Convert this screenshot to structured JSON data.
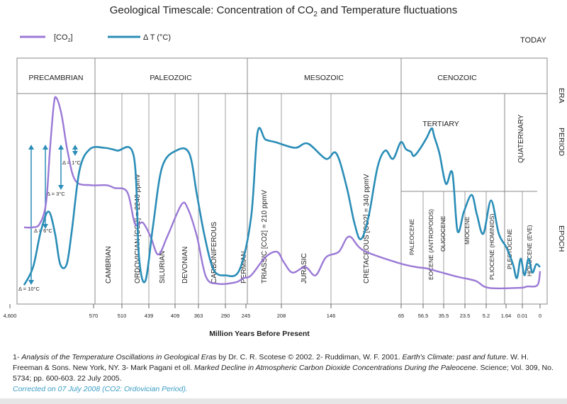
{
  "title_main": "Geological Timescale: Concentration of CO",
  "title_sub": "2",
  "title_rest": " and Temperature fluctuations",
  "legend": {
    "co2_label": "[CO",
    "co2_sub": "2",
    "co2_close": "]",
    "temp_label": "Δ T (°C)",
    "co2_color": "#9b79d6",
    "temp_color": "#2a8db7"
  },
  "today_label": "TODAY",
  "right_labels": [
    "ERA",
    "PERIOD",
    "EPOCH"
  ],
  "eras": [
    "PRECAMBRIAN",
    "PALEOZOIC",
    "MESOZOIC",
    "CENOZOIC"
  ],
  "tertiary_label": "TERTIARY",
  "quaternary_label": "QUATERNARY",
  "periods": [
    "CAMBRIAN",
    "ORDOVICIAN [CO2] = 2240 ppmV",
    "SILURIAN",
    "DEVONIAN",
    "CARBONIFEROUS",
    "PERMIAN",
    "TRIASSIC [CO2] = 210 ppmV",
    "JURASIC",
    "CRETACEOUS [CO2] = 340 ppmV"
  ],
  "epochs": [
    "PALEOCENE",
    "EOCENE (ANTROPOIDS)",
    "OLIGOCENE",
    "MIOCENE",
    "PLIOCENE (HOMINIDS)",
    "PLESTOCENE",
    "HOLOCENE (EVE)"
  ],
  "scale_labels": [
    "Δ = 1°C",
    "Δ = 3°C",
    "Δ = 6°C",
    "Δ = 10°C"
  ],
  "x_axis": {
    "ticks": [
      "4,600",
      "570",
      "510",
      "439",
      "409",
      "363",
      "290",
      "245",
      "208",
      "146",
      "65",
      "56.5",
      "35.5",
      "23.5",
      "5.2",
      "1.64",
      "0.01",
      "0"
    ],
    "xlabel": "Million Years Before Present"
  },
  "caption": {
    "p1": "1- ",
    "p2": "Analysis of the Temperature Oscillations in Geological Eras",
    "p3": " by Dr. C. R. Scotese © 2002. 2- Ruddiman, W. F. 2001. ",
    "p4": "Earth's Climate: past and future",
    "p5": ". W. H. Freeman & Sons. New York, NY. 3- Mark Pagani et oll. ",
    "p6": "Marked Decline in Atmospheric Carbon Dioxide Concentrations During the Paleocene",
    "p7": ". Science; Vol. 309, No. 5734; pp. 600-603. 22 July 2005.",
    "correction": "Corrected on 07 July 2008 (CO2: Ordovician Period)."
  },
  "chart_data": {
    "type": "line",
    "x_ticks_mya": [
      "4,600",
      "570",
      "510",
      "439",
      "409",
      "363",
      "290",
      "245",
      "208",
      "146",
      "65",
      "56.5",
      "35.5",
      "23.5",
      "5.2",
      "1.64",
      "0.01",
      "0"
    ],
    "xlabel": "Million Years Before Present",
    "series": [
      {
        "name": "[CO2]",
        "color": "#9b79d6",
        "points": [
          [
            0,
            2.33
          ],
          [
            0.3,
            2.33
          ],
          [
            0.6,
            2.45
          ],
          [
            0.85,
            3.2
          ],
          [
            1.0,
            5.1
          ],
          [
            1.15,
            6.75
          ],
          [
            1.25,
            7.0
          ],
          [
            1.45,
            6.4
          ],
          [
            1.7,
            5.0
          ],
          [
            2.0,
            4.0
          ],
          [
            2.6,
            3.85
          ],
          [
            3.2,
            3.85
          ],
          [
            3.5,
            3.75
          ],
          [
            4.0,
            3.6
          ],
          [
            4.3,
            2.45
          ],
          [
            4.6,
            2.5
          ],
          [
            4.9,
            2.0
          ],
          [
            5.2,
            1.35
          ],
          [
            5.55,
            2.0
          ],
          [
            6.1,
            3.15
          ],
          [
            6.35,
            3.0
          ],
          [
            6.7,
            2.0
          ],
          [
            7.05,
            0.55
          ],
          [
            7.5,
            0.3
          ],
          [
            8.2,
            0.35
          ],
          [
            8.5,
            0.5
          ],
          [
            8.8,
            0.6
          ],
          [
            9.35,
            1.25
          ],
          [
            9.8,
            1.45
          ],
          [
            10.05,
            1.1
          ],
          [
            10.4,
            0.7
          ],
          [
            10.9,
            0.9
          ],
          [
            11.3,
            0.6
          ],
          [
            11.7,
            1.25
          ],
          [
            12.2,
            1.45
          ],
          [
            12.6,
            2.0
          ],
          [
            13.15,
            1.5
          ],
          [
            14.5,
            1.05
          ],
          [
            15.2,
            0.9
          ],
          [
            15.6,
            0.85
          ],
          [
            16.2,
            0.7
          ],
          [
            16.8,
            0.55
          ],
          [
            17.5,
            0.4
          ],
          [
            18.0,
            0.15
          ],
          [
            19.2,
            0.15
          ],
          [
            19.5,
            0.2
          ],
          [
            19.9,
            0.25
          ],
          [
            20.0,
            0.75
          ]
        ]
      },
      {
        "name": "Δ T (°C)",
        "color": "#2a8db7",
        "points": [
          [
            0,
            0.25
          ],
          [
            0.35,
            0.9
          ],
          [
            0.65,
            2.2
          ],
          [
            0.95,
            2.9
          ],
          [
            1.2,
            2.1
          ],
          [
            1.4,
            1.0
          ],
          [
            1.65,
            1.0
          ],
          [
            1.85,
            2.2
          ],
          [
            2.15,
            4.4
          ],
          [
            2.55,
            5.15
          ],
          [
            3.1,
            5.2
          ],
          [
            3.6,
            5.1
          ],
          [
            4.25,
            4.9
          ],
          [
            4.45,
            1.3
          ],
          [
            4.7,
            0.4
          ],
          [
            5.0,
            2.4
          ],
          [
            5.35,
            4.5
          ],
          [
            5.9,
            5.1
          ],
          [
            6.4,
            5.0
          ],
          [
            6.7,
            3.5
          ],
          [
            7.0,
            2.0
          ],
          [
            7.35,
            0.8
          ],
          [
            7.8,
            0.6
          ],
          [
            8.35,
            0.8
          ],
          [
            8.8,
            2.7
          ],
          [
            9.05,
            5.75
          ],
          [
            9.35,
            5.5
          ],
          [
            9.75,
            5.4
          ],
          [
            10.5,
            5.2
          ],
          [
            11.0,
            5.35
          ],
          [
            11.7,
            4.8
          ],
          [
            12.1,
            5.0
          ],
          [
            12.5,
            3.8
          ],
          [
            12.8,
            2.5
          ],
          [
            13.05,
            1.9
          ],
          [
            13.35,
            2.7
          ],
          [
            13.7,
            4.5
          ],
          [
            14.0,
            5.1
          ],
          [
            14.3,
            4.8
          ],
          [
            14.6,
            5.4
          ],
          [
            14.8,
            5.15
          ],
          [
            15.0,
            5.05
          ],
          [
            15.1,
            4.9
          ],
          [
            15.3,
            5.1
          ],
          [
            15.6,
            5.55
          ],
          [
            15.8,
            5.9
          ],
          [
            15.9,
            5.6
          ],
          [
            16.1,
            5.0
          ],
          [
            16.35,
            3.9
          ],
          [
            16.6,
            4.3
          ],
          [
            16.8,
            2.2
          ],
          [
            17.05,
            2.9
          ],
          [
            17.35,
            3.5
          ],
          [
            17.55,
            2.8
          ],
          [
            17.8,
            2.1
          ],
          [
            18.1,
            3.3
          ],
          [
            18.4,
            2.1
          ],
          [
            18.7,
            1.6
          ],
          [
            18.95,
            1.0
          ],
          [
            19.1,
            0.5
          ],
          [
            19.25,
            1.2
          ],
          [
            19.4,
            0.6
          ],
          [
            19.55,
            1.2
          ],
          [
            19.7,
            0.7
          ],
          [
            19.85,
            1.0
          ],
          [
            20.0,
            0.9
          ]
        ]
      }
    ],
    "annotations": [
      "Δ = 1°C",
      "Δ = 3°C",
      "Δ = 6°C",
      "Δ = 10°C"
    ],
    "eras": [
      "PRECAMBRIAN",
      "PALEOZOIC",
      "MESOZOIC",
      "CENOZOIC"
    ],
    "grid": false,
    "legend_position": "top-left"
  }
}
